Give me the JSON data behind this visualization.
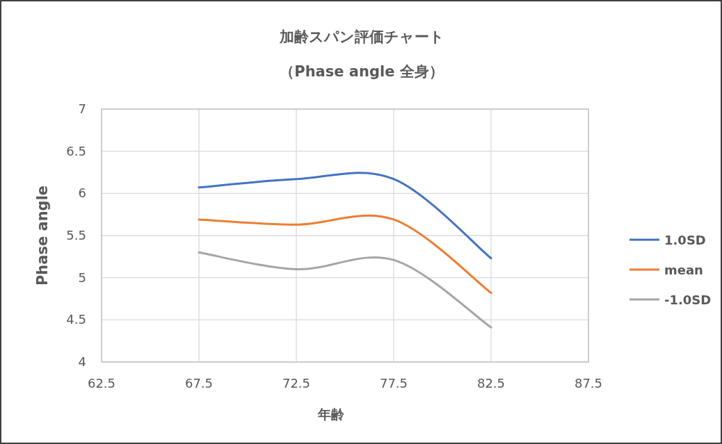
{
  "chart_data": {
    "type": "line",
    "title": "加齢スパン評価チャート",
    "subtitle": "（Phase angle 全身）",
    "xlabel": "年齢",
    "ylabel": "Phase angle",
    "x": [
      67.5,
      72.5,
      77.5,
      82.5
    ],
    "series": [
      {
        "name": "1.0SD",
        "color": "#4472c4",
        "values": [
          6.07,
          6.17,
          6.17,
          5.23
        ]
      },
      {
        "name": "mean",
        "color": "#ed7d31",
        "values": [
          5.69,
          5.63,
          5.69,
          4.82
        ]
      },
      {
        "name": "-1.0SD",
        "color": "#a5a5a5",
        "values": [
          5.3,
          5.1,
          5.21,
          4.41
        ]
      }
    ],
    "xlim": [
      62.5,
      87.5
    ],
    "xticks": [
      62.5,
      67.5,
      72.5,
      77.5,
      82.5,
      87.5
    ],
    "ylim": [
      4,
      7
    ],
    "yticks": [
      4,
      4.5,
      5,
      5.5,
      6,
      6.5,
      7
    ],
    "grid": true,
    "legend": "right",
    "marker": "none",
    "line_style": "solid"
  }
}
